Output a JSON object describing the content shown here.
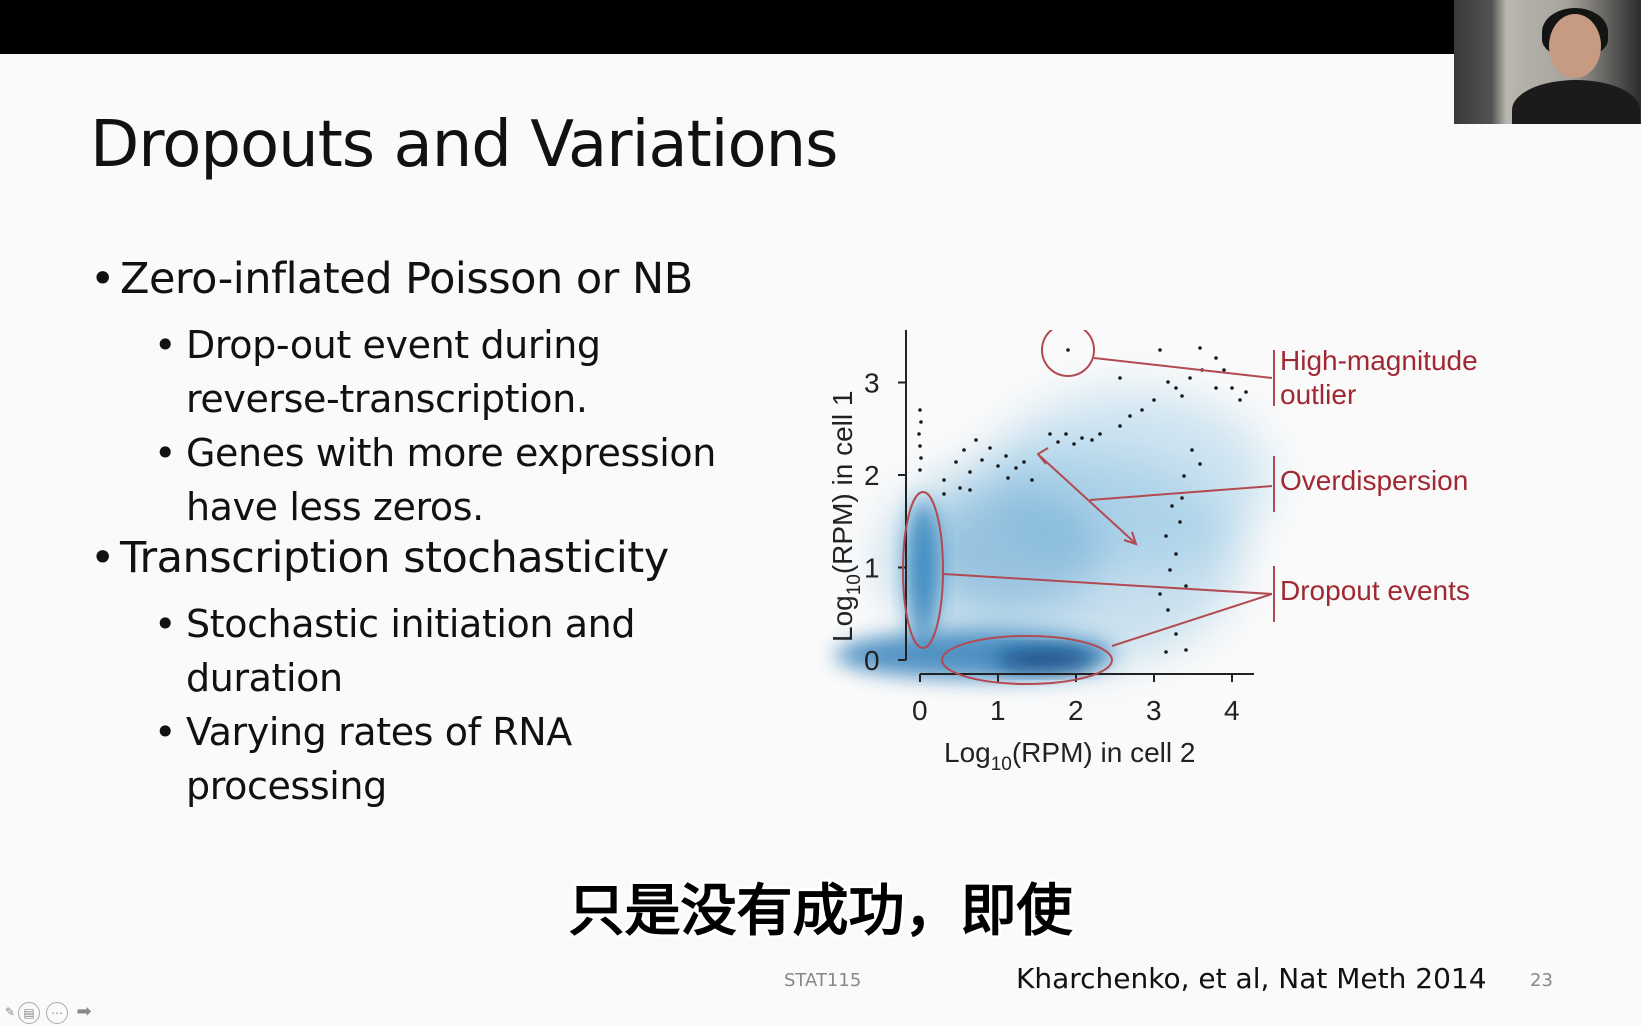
{
  "slide": {
    "title": "Dropouts and Variations",
    "bullets": [
      {
        "text": "Zero-inflated Poisson or NB",
        "children": [
          {
            "line1": "Drop-out event during",
            "line2": "reverse-transcription."
          },
          {
            "line1": "Genes with more expression",
            "line2": "have less zeros."
          }
        ]
      },
      {
        "text": "Transcription stochasticity",
        "children": [
          {
            "line1": "Stochastic initiation and",
            "line2": "duration"
          },
          {
            "line1": "Varying rates of RNA",
            "line2": "processing"
          }
        ]
      }
    ],
    "bullet_glyph": "•"
  },
  "figure": {
    "ylabel_prefix": "Log",
    "ylabel_sub": "10",
    "ylabel_suffix": "(RPM) in cell 1",
    "xlabel_prefix": "Log",
    "xlabel_sub": "10",
    "xlabel_suffix": "(RPM) in cell 2",
    "yticks": [
      "0",
      "1",
      "2",
      "3"
    ],
    "xticks": [
      "0",
      "1",
      "2",
      "3",
      "4"
    ],
    "annotations": {
      "outlier_line1": "High-magnitude",
      "outlier_line2": "outlier",
      "overdispersion": "Overdispersion",
      "dropout": "Dropout events"
    },
    "colors": {
      "density": "#1f6fae",
      "annotation": "#a02832"
    }
  },
  "subtitle": "只是没有成功，即使",
  "footer": {
    "course": "STAT115",
    "citation": "Kharchenko, et al, Nat Meth 2014",
    "page_number": "23"
  }
}
